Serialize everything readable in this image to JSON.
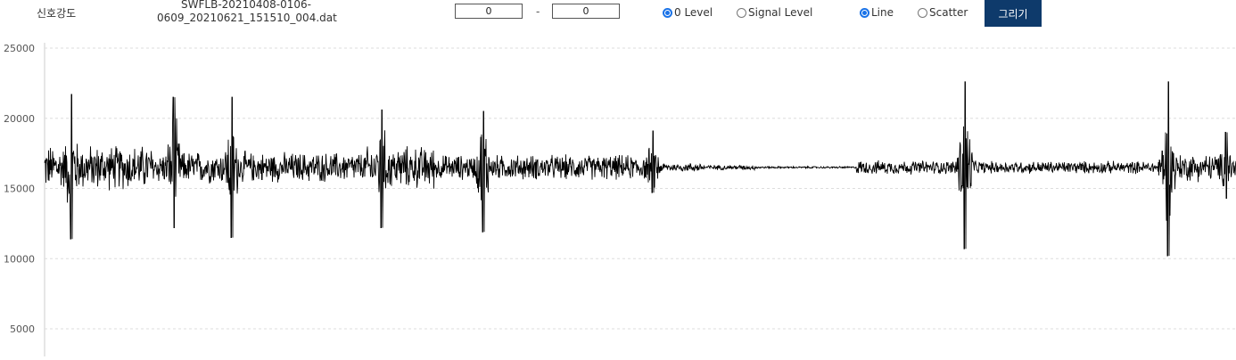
{
  "toolbar": {
    "signal_label": "신호강도",
    "filename_line1": "SWFLB-20210408-0106-",
    "filename_line2": "0609_20210621_151510_004.dat",
    "range_from": "0",
    "range_to": "0",
    "range_separator": "-",
    "level_options": [
      {
        "label": "0 Level",
        "checked": true
      },
      {
        "label": "Signal Level",
        "checked": false
      }
    ],
    "plot_options": [
      {
        "label": "Line",
        "checked": true
      },
      {
        "label": "Scatter",
        "checked": false
      }
    ],
    "draw_button": "그리기",
    "accent_color": "#0e3a6b",
    "radio_color": "#1a73e8"
  },
  "chart_data": {
    "type": "line",
    "title": "",
    "xlabel": "",
    "ylabel": "",
    "ylim_visible": [
      3000,
      25000
    ],
    "yticks": [
      5000,
      10000,
      15000,
      20000,
      25000
    ],
    "grid": "horizontal dashed",
    "series_color": "#000000",
    "baseline": 16500,
    "x_range": [
      0,
      1336
    ],
    "segments": [
      {
        "x": [
          0,
          120
        ],
        "amplitude": 1800
      },
      {
        "x": [
          120,
          230
        ],
        "amplitude": 1300
      },
      {
        "x": [
          230,
          360
        ],
        "amplitude": 1200
      },
      {
        "x": [
          360,
          440
        ],
        "amplitude": 1700
      },
      {
        "x": [
          440,
          680
        ],
        "amplitude": 1000
      },
      {
        "x": [
          680,
          740
        ],
        "amplitude": 350
      },
      {
        "x": [
          740,
          800
        ],
        "amplitude": 200
      },
      {
        "x": [
          800,
          910
        ],
        "amplitude": 80
      },
      {
        "x": [
          910,
          1020
        ],
        "amplitude": 550
      },
      {
        "x": [
          1020,
          1250
        ],
        "amplitude": 500
      },
      {
        "x": [
          1250,
          1336
        ],
        "amplitude": 1100
      }
    ],
    "bursts": [
      {
        "x": 30,
        "max": 21700,
        "min": 11400
      },
      {
        "x": 145,
        "max": 21500,
        "min": 12200
      },
      {
        "x": 210,
        "max": 21500,
        "min": 11500
      },
      {
        "x": 378,
        "max": 20600,
        "min": 12200
      },
      {
        "x": 492,
        "max": 20500,
        "min": 11900
      },
      {
        "x": 682,
        "max": 19100,
        "min": 14700
      },
      {
        "x": 1032,
        "max": 22600,
        "min": 10700
      },
      {
        "x": 1260,
        "max": 22600,
        "min": 10200
      },
      {
        "x": 1325,
        "max": 19000,
        "min": 14300
      }
    ]
  }
}
